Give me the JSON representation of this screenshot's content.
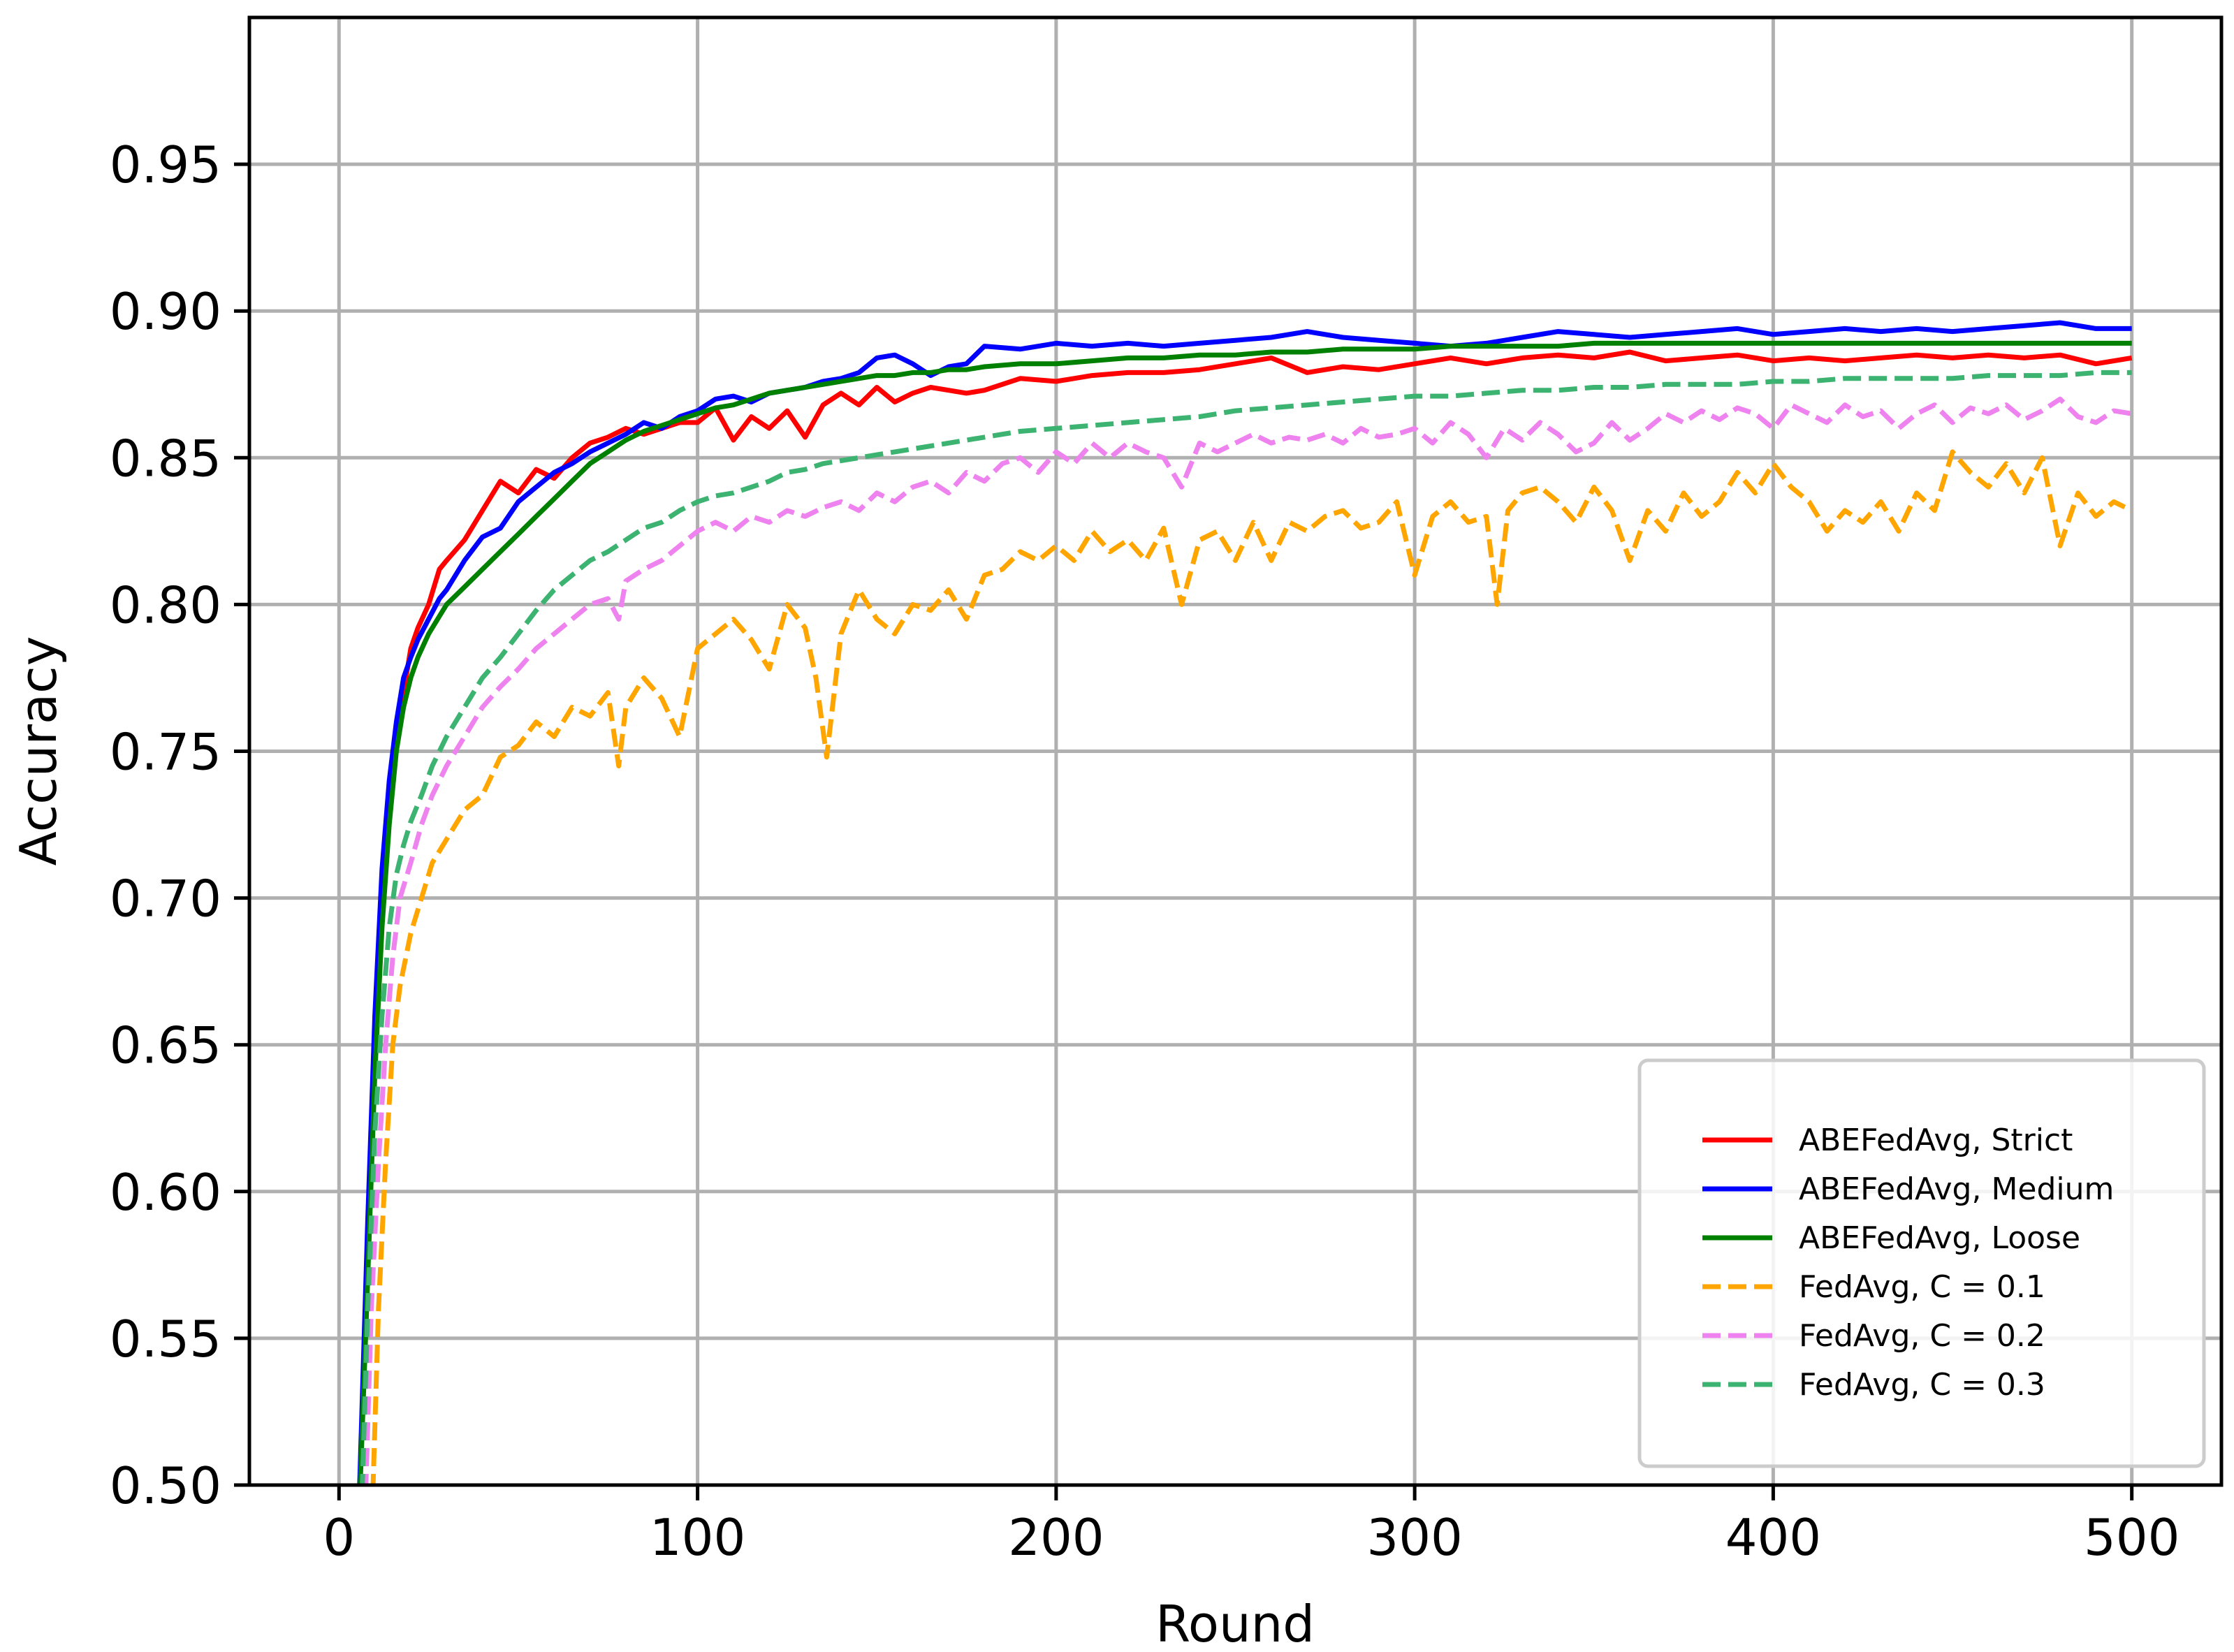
{
  "chart_data": {
    "type": "line",
    "xlabel": "Round",
    "ylabel": "Accuracy",
    "xlim": [
      -25,
      525
    ],
    "ylim": [
      0.5,
      1.0
    ],
    "xticks": [
      0,
      100,
      200,
      300,
      400,
      500
    ],
    "xtick_labels": [
      "0",
      "100",
      "200",
      "300",
      "400",
      "500"
    ],
    "yticks": [
      0.5,
      0.55,
      0.6,
      0.65,
      0.7,
      0.75,
      0.8,
      0.85,
      0.9,
      0.95
    ],
    "ytick_labels": [
      "0.50",
      "0.55",
      "0.60",
      "0.65",
      "0.70",
      "0.75",
      "0.80",
      "0.85",
      "0.90",
      "0.95"
    ],
    "grid": true,
    "legend_position": "lower-right",
    "series": [
      {
        "name": "ABEFedAvg, Strict",
        "color": "#ff0000",
        "dash": "solid",
        "x": [
          5,
          8,
          10,
          12,
          14,
          16,
          18,
          20,
          22,
          25,
          28,
          30,
          35,
          40,
          45,
          50,
          55,
          60,
          65,
          70,
          75,
          80,
          85,
          90,
          95,
          100,
          105,
          110,
          115,
          120,
          125,
          130,
          135,
          140,
          145,
          150,
          155,
          160,
          165,
          170,
          175,
          180,
          190,
          200,
          210,
          220,
          230,
          240,
          250,
          260,
          270,
          280,
          290,
          300,
          310,
          320,
          330,
          340,
          350,
          360,
          370,
          380,
          390,
          400,
          410,
          420,
          430,
          440,
          450,
          460,
          470,
          480,
          490,
          500
        ],
        "y": [
          0.47,
          0.58,
          0.65,
          0.7,
          0.735,
          0.755,
          0.77,
          0.785,
          0.792,
          0.8,
          0.812,
          0.815,
          0.822,
          0.832,
          0.842,
          0.838,
          0.846,
          0.843,
          0.85,
          0.855,
          0.857,
          0.86,
          0.858,
          0.86,
          0.862,
          0.862,
          0.867,
          0.856,
          0.864,
          0.86,
          0.866,
          0.857,
          0.868,
          0.872,
          0.868,
          0.874,
          0.869,
          0.872,
          0.874,
          0.873,
          0.872,
          0.873,
          0.877,
          0.876,
          0.878,
          0.879,
          0.879,
          0.88,
          0.882,
          0.884,
          0.879,
          0.881,
          0.88,
          0.882,
          0.884,
          0.882,
          0.884,
          0.885,
          0.884,
          0.886,
          0.883,
          0.884,
          0.885,
          0.883,
          0.884,
          0.883,
          0.884,
          0.885,
          0.884,
          0.885,
          0.884,
          0.885,
          0.882,
          0.884
        ]
      },
      {
        "name": "ABEFedAvg, Medium",
        "color": "#0000ff",
        "dash": "solid",
        "x": [
          5,
          8,
          10,
          12,
          14,
          16,
          18,
          20,
          22,
          25,
          28,
          30,
          35,
          40,
          45,
          50,
          55,
          60,
          65,
          70,
          75,
          80,
          85,
          90,
          95,
          100,
          105,
          110,
          115,
          120,
          125,
          130,
          135,
          140,
          145,
          150,
          155,
          160,
          165,
          170,
          175,
          180,
          190,
          200,
          210,
          220,
          230,
          240,
          250,
          260,
          270,
          280,
          290,
          300,
          310,
          320,
          330,
          340,
          350,
          360,
          370,
          380,
          390,
          400,
          410,
          420,
          430,
          440,
          450,
          460,
          470,
          480,
          490,
          500
        ],
        "y": [
          0.47,
          0.59,
          0.66,
          0.71,
          0.74,
          0.76,
          0.775,
          0.782,
          0.788,
          0.795,
          0.802,
          0.805,
          0.815,
          0.823,
          0.826,
          0.835,
          0.84,
          0.845,
          0.848,
          0.852,
          0.855,
          0.858,
          0.862,
          0.86,
          0.864,
          0.866,
          0.87,
          0.871,
          0.869,
          0.872,
          0.873,
          0.874,
          0.876,
          0.877,
          0.879,
          0.884,
          0.885,
          0.882,
          0.878,
          0.881,
          0.882,
          0.888,
          0.887,
          0.889,
          0.888,
          0.889,
          0.888,
          0.889,
          0.89,
          0.891,
          0.893,
          0.891,
          0.89,
          0.889,
          0.888,
          0.889,
          0.891,
          0.893,
          0.892,
          0.891,
          0.892,
          0.893,
          0.894,
          0.892,
          0.893,
          0.894,
          0.893,
          0.894,
          0.893,
          0.894,
          0.895,
          0.896,
          0.894,
          0.894
        ]
      },
      {
        "name": "ABEFedAvg, Loose",
        "color": "#008000",
        "dash": "solid",
        "x": [
          5,
          8,
          10,
          12,
          14,
          16,
          18,
          20,
          22,
          25,
          28,
          30,
          35,
          40,
          45,
          50,
          55,
          60,
          65,
          70,
          75,
          80,
          85,
          90,
          95,
          100,
          105,
          110,
          115,
          120,
          125,
          130,
          135,
          140,
          145,
          150,
          155,
          160,
          165,
          170,
          175,
          180,
          190,
          200,
          210,
          220,
          230,
          240,
          250,
          260,
          270,
          280,
          290,
          300,
          310,
          320,
          330,
          340,
          350,
          360,
          370,
          380,
          390,
          400,
          410,
          420,
          430,
          440,
          450,
          460,
          470,
          480,
          490,
          500
        ],
        "y": [
          0.47,
          0.57,
          0.64,
          0.69,
          0.725,
          0.75,
          0.765,
          0.775,
          0.782,
          0.79,
          0.796,
          0.8,
          0.806,
          0.812,
          0.818,
          0.824,
          0.83,
          0.836,
          0.842,
          0.848,
          0.852,
          0.856,
          0.859,
          0.861,
          0.863,
          0.865,
          0.867,
          0.868,
          0.87,
          0.872,
          0.873,
          0.874,
          0.875,
          0.876,
          0.877,
          0.878,
          0.878,
          0.879,
          0.879,
          0.88,
          0.88,
          0.881,
          0.882,
          0.882,
          0.883,
          0.884,
          0.884,
          0.885,
          0.885,
          0.886,
          0.886,
          0.887,
          0.887,
          0.887,
          0.888,
          0.888,
          0.888,
          0.888,
          0.889,
          0.889,
          0.889,
          0.889,
          0.889,
          0.889,
          0.889,
          0.889,
          0.889,
          0.889,
          0.889,
          0.889,
          0.889,
          0.889,
          0.889,
          0.889
        ]
      },
      {
        "name": "FedAvg, C = 0.1",
        "color": "#ffa500",
        "dash": "dashed",
        "x": [
          9,
          11,
          13,
          15,
          17,
          20,
          23,
          26,
          30,
          35,
          40,
          45,
          50,
          55,
          60,
          65,
          70,
          75,
          78,
          80,
          85,
          90,
          95,
          100,
          105,
          110,
          115,
          120,
          125,
          130,
          133,
          136,
          140,
          145,
          150,
          155,
          160,
          165,
          170,
          175,
          180,
          185,
          190,
          195,
          200,
          205,
          210,
          215,
          220,
          225,
          230,
          235,
          240,
          245,
          250,
          255,
          260,
          265,
          270,
          275,
          280,
          285,
          290,
          295,
          300,
          305,
          310,
          315,
          320,
          323,
          326,
          330,
          335,
          340,
          345,
          350,
          355,
          360,
          365,
          370,
          375,
          380,
          385,
          390,
          395,
          400,
          405,
          410,
          415,
          420,
          425,
          430,
          435,
          440,
          445,
          450,
          455,
          460,
          465,
          470,
          475,
          480,
          485,
          490,
          495,
          500
        ],
        "y": [
          0.48,
          0.56,
          0.61,
          0.65,
          0.67,
          0.688,
          0.7,
          0.712,
          0.72,
          0.73,
          0.735,
          0.748,
          0.752,
          0.76,
          0.755,
          0.765,
          0.762,
          0.77,
          0.745,
          0.765,
          0.775,
          0.768,
          0.755,
          0.785,
          0.79,
          0.795,
          0.788,
          0.778,
          0.8,
          0.792,
          0.775,
          0.748,
          0.79,
          0.805,
          0.795,
          0.79,
          0.8,
          0.798,
          0.805,
          0.795,
          0.81,
          0.812,
          0.818,
          0.815,
          0.82,
          0.815,
          0.825,
          0.818,
          0.822,
          0.815,
          0.826,
          0.8,
          0.822,
          0.825,
          0.815,
          0.828,
          0.815,
          0.828,
          0.825,
          0.83,
          0.832,
          0.826,
          0.828,
          0.835,
          0.81,
          0.83,
          0.835,
          0.828,
          0.83,
          0.8,
          0.832,
          0.838,
          0.84,
          0.835,
          0.828,
          0.84,
          0.832,
          0.815,
          0.832,
          0.825,
          0.838,
          0.83,
          0.835,
          0.845,
          0.838,
          0.848,
          0.84,
          0.835,
          0.825,
          0.832,
          0.828,
          0.835,
          0.825,
          0.838,
          0.832,
          0.852,
          0.845,
          0.84,
          0.848,
          0.838,
          0.85,
          0.82,
          0.838,
          0.83,
          0.835,
          0.832
        ]
      },
      {
        "name": "FedAvg, C = 0.2",
        "color": "#ee82ee",
        "dash": "dashed",
        "x": [
          7,
          9,
          11,
          13,
          15,
          17,
          20,
          23,
          26,
          30,
          35,
          40,
          45,
          50,
          55,
          60,
          65,
          70,
          75,
          78,
          80,
          85,
          90,
          95,
          100,
          105,
          110,
          115,
          120,
          125,
          130,
          135,
          140,
          145,
          150,
          155,
          160,
          165,
          170,
          175,
          180,
          185,
          190,
          195,
          200,
          205,
          210,
          215,
          220,
          225,
          230,
          235,
          240,
          245,
          250,
          255,
          260,
          265,
          270,
          275,
          280,
          285,
          290,
          295,
          300,
          305,
          310,
          315,
          320,
          325,
          330,
          335,
          340,
          345,
          350,
          355,
          360,
          365,
          370,
          375,
          380,
          385,
          390,
          395,
          400,
          405,
          410,
          415,
          420,
          425,
          430,
          435,
          440,
          445,
          450,
          455,
          460,
          465,
          470,
          475,
          480,
          485,
          490,
          495,
          500
        ],
        "y": [
          0.48,
          0.56,
          0.61,
          0.65,
          0.68,
          0.7,
          0.712,
          0.725,
          0.735,
          0.745,
          0.755,
          0.765,
          0.772,
          0.778,
          0.785,
          0.79,
          0.795,
          0.8,
          0.802,
          0.795,
          0.808,
          0.812,
          0.815,
          0.82,
          0.825,
          0.828,
          0.825,
          0.83,
          0.828,
          0.832,
          0.83,
          0.833,
          0.835,
          0.832,
          0.838,
          0.835,
          0.84,
          0.842,
          0.838,
          0.845,
          0.842,
          0.848,
          0.85,
          0.845,
          0.852,
          0.848,
          0.855,
          0.85,
          0.855,
          0.852,
          0.85,
          0.84,
          0.855,
          0.852,
          0.855,
          0.858,
          0.855,
          0.857,
          0.856,
          0.858,
          0.855,
          0.86,
          0.857,
          0.858,
          0.86,
          0.855,
          0.862,
          0.858,
          0.85,
          0.86,
          0.856,
          0.862,
          0.858,
          0.852,
          0.855,
          0.862,
          0.856,
          0.86,
          0.865,
          0.862,
          0.866,
          0.863,
          0.867,
          0.865,
          0.86,
          0.868,
          0.865,
          0.862,
          0.868,
          0.864,
          0.866,
          0.86,
          0.865,
          0.868,
          0.862,
          0.867,
          0.865,
          0.868,
          0.863,
          0.866,
          0.87,
          0.864,
          0.862,
          0.866,
          0.865
        ]
      },
      {
        "name": "FedAvg, C = 0.3",
        "color": "#3cb371",
        "dash": "dashed",
        "x": [
          6,
          8,
          10,
          12,
          14,
          16,
          18,
          20,
          23,
          26,
          30,
          35,
          40,
          45,
          50,
          55,
          60,
          65,
          70,
          75,
          80,
          85,
          90,
          95,
          100,
          105,
          110,
          115,
          120,
          125,
          130,
          135,
          140,
          145,
          150,
          155,
          160,
          165,
          170,
          175,
          180,
          190,
          200,
          210,
          220,
          230,
          240,
          250,
          260,
          270,
          280,
          290,
          300,
          310,
          320,
          330,
          340,
          350,
          360,
          370,
          380,
          390,
          400,
          410,
          420,
          430,
          440,
          450,
          460,
          470,
          480,
          490,
          500
        ],
        "y": [
          0.48,
          0.56,
          0.62,
          0.66,
          0.69,
          0.708,
          0.718,
          0.726,
          0.735,
          0.745,
          0.755,
          0.765,
          0.775,
          0.782,
          0.79,
          0.798,
          0.805,
          0.81,
          0.815,
          0.818,
          0.822,
          0.826,
          0.828,
          0.832,
          0.835,
          0.837,
          0.838,
          0.84,
          0.842,
          0.845,
          0.846,
          0.848,
          0.849,
          0.85,
          0.851,
          0.852,
          0.853,
          0.854,
          0.855,
          0.856,
          0.857,
          0.859,
          0.86,
          0.861,
          0.862,
          0.863,
          0.864,
          0.866,
          0.867,
          0.868,
          0.869,
          0.87,
          0.871,
          0.871,
          0.872,
          0.873,
          0.873,
          0.874,
          0.874,
          0.875,
          0.875,
          0.875,
          0.876,
          0.876,
          0.877,
          0.877,
          0.877,
          0.877,
          0.878,
          0.878,
          0.878,
          0.879,
          0.879
        ]
      }
    ]
  }
}
